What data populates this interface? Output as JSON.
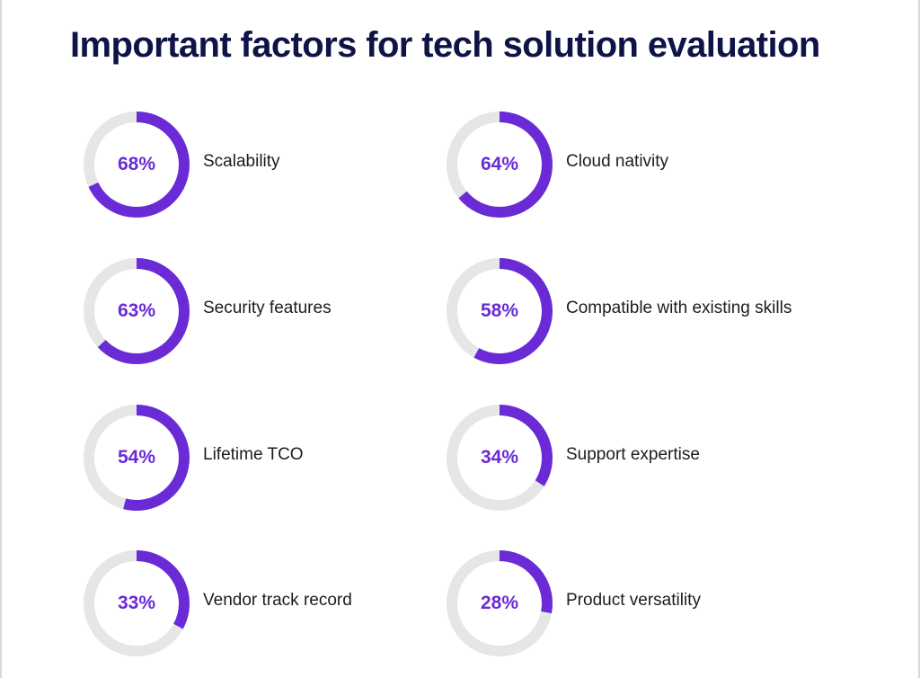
{
  "title": "Important factors for tech solution evaluation",
  "colors": {
    "track": "#e6e6e6",
    "progress": "#6a2bd6",
    "title": "#0f1447",
    "label": "#1c1c1c"
  },
  "chart_data": {
    "type": "donut",
    "title": "Important factors for tech solution evaluation",
    "unit": "%",
    "items": [
      {
        "label": "Scalability",
        "value": 68,
        "display": "68%"
      },
      {
        "label": "Cloud nativity",
        "value": 64,
        "display": "64%"
      },
      {
        "label": "Security features",
        "value": 63,
        "display": "63%"
      },
      {
        "label": "Compatible with existing skills",
        "value": 58,
        "display": "58%"
      },
      {
        "label": "Lifetime TCO",
        "value": 54,
        "display": "54%"
      },
      {
        "label": "Support expertise",
        "value": 34,
        "display": "34%"
      },
      {
        "label": "Vendor track record",
        "value": 33,
        "display": "33%"
      },
      {
        "label": "Product versatility",
        "value": 28,
        "display": "28%"
      }
    ]
  }
}
